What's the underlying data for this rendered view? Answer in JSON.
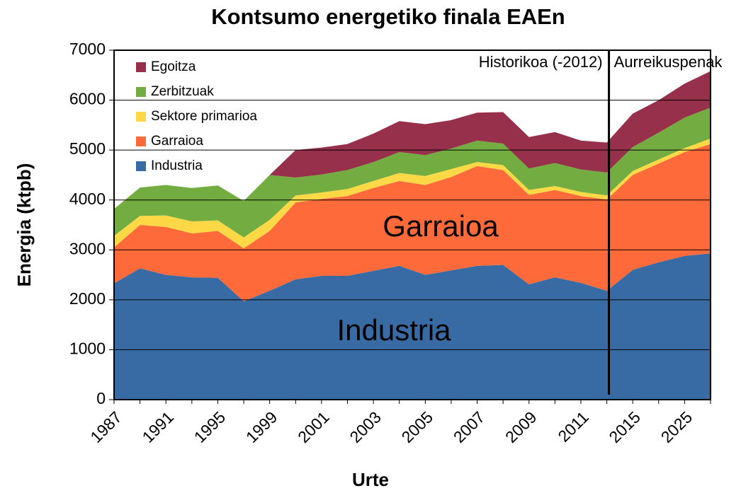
{
  "chart_data": {
    "type": "stacked_area",
    "title": "Kontsumo energetiko finala EAEn",
    "xlabel": "Urte",
    "ylabel": "Energia (ktpb)",
    "categories": [
      "1987",
      null,
      "1991",
      null,
      "1995",
      null,
      "1999",
      null,
      "2001",
      null,
      "2003",
      null,
      "2005",
      null,
      "2007",
      null,
      "2009",
      null,
      "2011",
      null,
      "2015",
      null,
      "2025",
      null
    ],
    "series": [
      {
        "name": "Industria",
        "color": "#386ba3",
        "values": [
          2330,
          2630,
          2500,
          2450,
          2440,
          1970,
          2180,
          2410,
          2480,
          2480,
          2580,
          2680,
          2500,
          2590,
          2680,
          2700,
          2310,
          2450,
          2340,
          2180,
          2600,
          2750,
          2880,
          2930
        ]
      },
      {
        "name": "Garraioa",
        "color": "#ff6a3b",
        "values": [
          720,
          870,
          960,
          880,
          940,
          1060,
          1200,
          1540,
          1540,
          1600,
          1660,
          1700,
          1800,
          1870,
          2000,
          1900,
          1790,
          1750,
          1740,
          1830,
          1900,
          1980,
          2080,
          2190
        ]
      },
      {
        "name": "Sektore primarioa",
        "color": "#ffd945",
        "values": [
          230,
          180,
          230,
          240,
          210,
          220,
          220,
          140,
          130,
          140,
          140,
          160,
          180,
          160,
          80,
          100,
          100,
          80,
          80,
          80,
          80,
          80,
          80,
          110
        ]
      },
      {
        "name": "Zerbitzuak",
        "color": "#73ad41",
        "values": [
          540,
          570,
          610,
          670,
          700,
          730,
          900,
          360,
          360,
          380,
          380,
          420,
          420,
          410,
          430,
          430,
          430,
          460,
          450,
          460,
          480,
          540,
          610,
          620
        ]
      },
      {
        "name": "Egoitza",
        "color": "#96304b",
        "values": [
          0,
          0,
          0,
          0,
          0,
          0,
          0,
          550,
          540,
          520,
          570,
          620,
          620,
          570,
          560,
          630,
          630,
          620,
          580,
          600,
          670,
          650,
          680,
          730
        ]
      }
    ],
    "ylim": [
      0,
      7000
    ],
    "yticks": [
      0,
      1000,
      2000,
      3000,
      4000,
      5000,
      6000,
      7000
    ],
    "grid": true,
    "legend": "upper left",
    "annotations": [
      "Garraioa",
      "Industria",
      "Historikoa (-2012)",
      "Aurreikuspenak"
    ]
  }
}
